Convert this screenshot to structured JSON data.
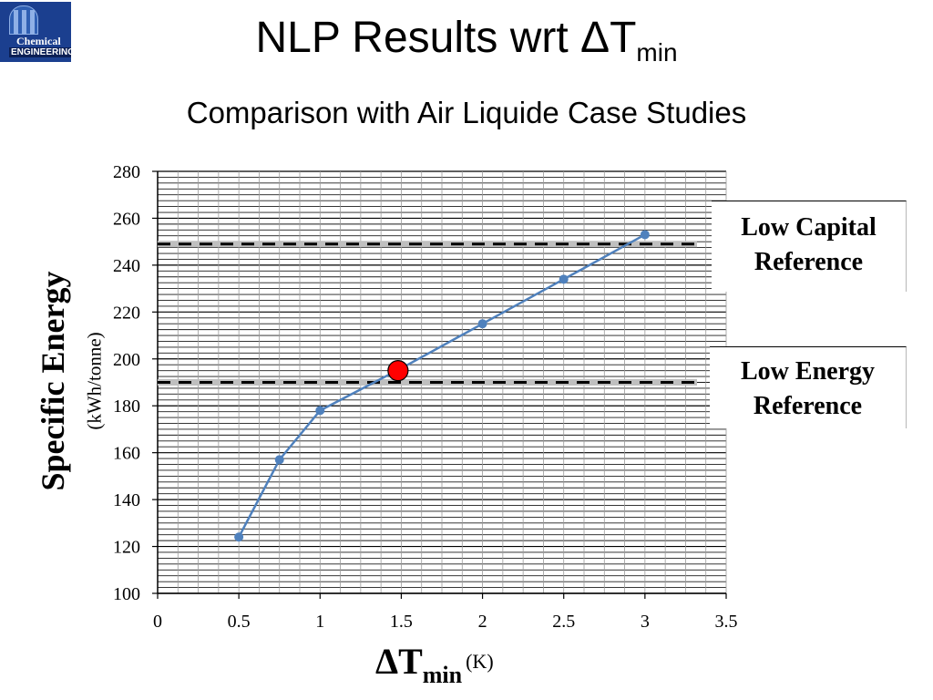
{
  "logo": {
    "line1": "Chemical",
    "line2": "ENGINEERING"
  },
  "title": {
    "main": "NLP Results wrt ",
    "symbol": "ΔT",
    "sub": "min"
  },
  "subtitle": "Comparison with Air Liquide Case Studies",
  "chart_data": {
    "type": "line",
    "x": [
      0.5,
      0.75,
      1.0,
      1.5,
      2.0,
      2.5,
      3.0
    ],
    "series": [
      {
        "values": [
          124,
          157,
          178,
          196,
          215,
          234,
          253
        ],
        "color": "#4f81bd"
      }
    ],
    "highlight_point": {
      "x": 1.48,
      "y": 195,
      "color": "#ff0000"
    },
    "reference_lines": [
      {
        "label": "Low Capital Reference",
        "y": 249
      },
      {
        "label": "Low Energy Reference",
        "y": 190
      }
    ],
    "xlim": [
      0,
      3.5
    ],
    "ylim": [
      100,
      280
    ],
    "x_ticks": [
      "0",
      "0.5",
      "1",
      "1.5",
      "2",
      "2.5",
      "3",
      "3.5"
    ],
    "y_ticks": [
      "100",
      "120",
      "140",
      "160",
      "180",
      "200",
      "220",
      "240",
      "260",
      "280"
    ],
    "ylabel": "Specific Energy",
    "ylabel_unit": "(kWh/tonne)",
    "xlabel": {
      "symbol": "ΔT",
      "sub": "min",
      "unit": "(K)"
    },
    "grid": true
  },
  "ref_boxes": {
    "capital": {
      "line1": "Low Capital",
      "line2": "Reference"
    },
    "energy": {
      "line1": "Low Energy",
      "line2": "Reference"
    }
  }
}
